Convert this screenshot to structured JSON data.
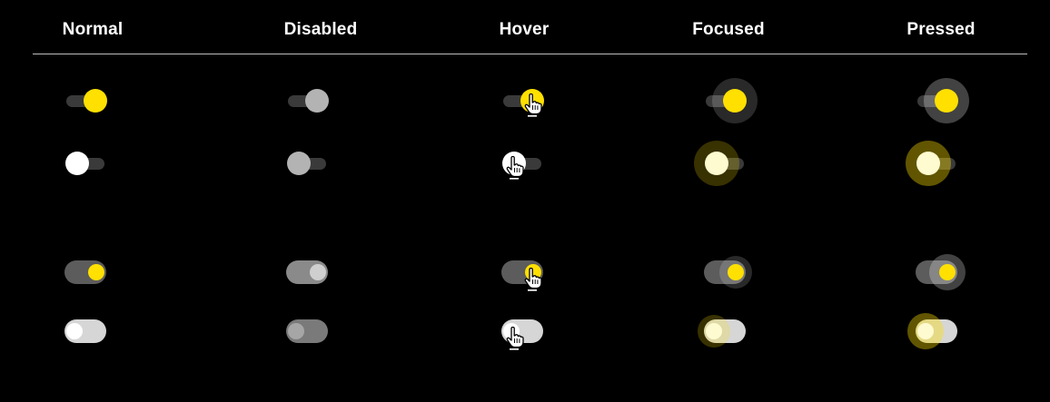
{
  "columns": [
    {
      "key": "normal",
      "label": "Normal"
    },
    {
      "key": "disabled",
      "label": "Disabled"
    },
    {
      "key": "hover",
      "label": "Hover"
    },
    {
      "key": "focused",
      "label": "Focused"
    },
    {
      "key": "pressed",
      "label": "Pressed"
    }
  ],
  "rows": [
    {
      "key": "small-on",
      "style": "inset-track",
      "checked": true
    },
    {
      "key": "small-off",
      "style": "inset-track",
      "checked": false
    },
    {
      "key": "large-on",
      "style": "contained-thumb",
      "checked": true
    },
    {
      "key": "large-off",
      "style": "contained-thumb",
      "checked": false
    }
  ],
  "colors": {
    "background": "#000000",
    "accent": "#ffe000",
    "thumb_off": "#ffffff",
    "disabled_thumb": "#b3b3b3",
    "track_dark": "#3a3a3a",
    "track_large_on": "#5c5c5c",
    "track_large_off": "#d6d6d6",
    "divider": "#bdbdbd",
    "focus_halo": "rgba(255,255,255,0.16)",
    "focus_halo_off": "rgba(255,224,0,0.22)",
    "pressed_halo": "rgba(255,255,255,0.26)",
    "pressed_halo_off": "rgba(255,224,0,0.38)"
  },
  "icons": {
    "hover_cursor": "hand-pointer-icon"
  }
}
